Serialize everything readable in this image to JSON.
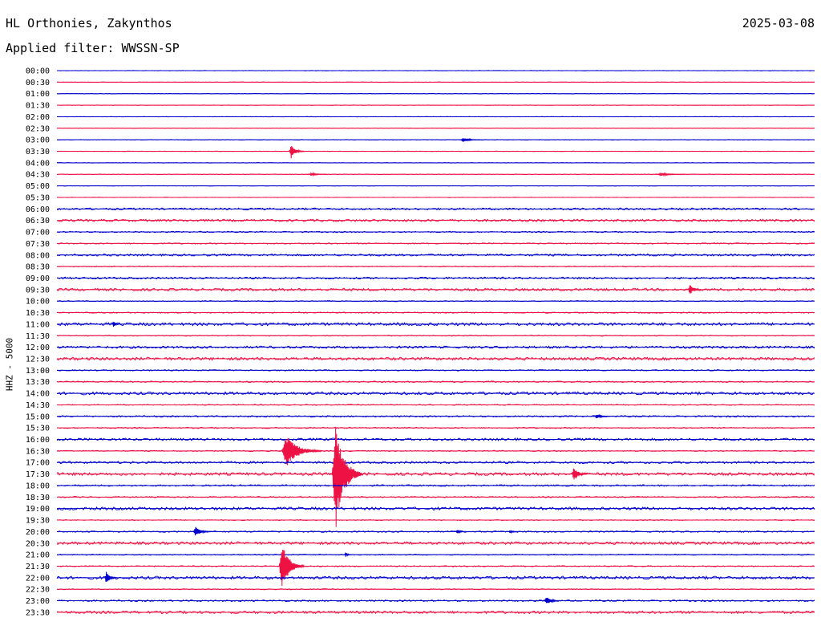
{
  "header": {
    "station": "HL Orthonies, Zakynthos",
    "date": "2025-03-08",
    "filter": "Applied filter: WWSSN-SP"
  },
  "side_label": "HHZ - 5000",
  "colors": {
    "even_row": "#0000cc",
    "odd_row": "#ee1144",
    "background": "#ffffff"
  },
  "chart_data": {
    "type": "line",
    "title": "",
    "ylabel": "HHZ - 5000",
    "xlabel": "",
    "x_unit": "minutes within 30-minute row",
    "xlim": [
      0,
      30
    ],
    "row_labels": [
      "00:00",
      "00:30",
      "01:00",
      "01:30",
      "02:00",
      "02:30",
      "03:00",
      "03:30",
      "04:00",
      "04:30",
      "05:00",
      "05:30",
      "06:00",
      "06:30",
      "07:00",
      "07:30",
      "08:00",
      "08:30",
      "09:00",
      "09:30",
      "10:00",
      "10:30",
      "11:00",
      "11:30",
      "12:00",
      "12:30",
      "13:00",
      "13:30",
      "14:00",
      "14:30",
      "15:00",
      "15:30",
      "16:00",
      "16:30",
      "17:00",
      "17:30",
      "18:00",
      "18:30",
      "19:00",
      "19:30",
      "20:00",
      "20:30",
      "21:00",
      "21:30",
      "22:00",
      "22:30",
      "23:00",
      "23:30"
    ],
    "noise_level": [
      0.3,
      0.3,
      0.3,
      0.3,
      0.3,
      0.3,
      0.4,
      0.3,
      0.3,
      0.4,
      0.3,
      0.3,
      1.2,
      1.5,
      0.8,
      0.8,
      1.3,
      0.6,
      1.2,
      1.6,
      0.6,
      0.7,
      1.8,
      0.6,
      1.5,
      1.8,
      0.8,
      0.9,
      1.8,
      0.6,
      1.0,
      0.8,
      1.5,
      0.7,
      1.4,
      1.8,
      1.0,
      0.8,
      1.8,
      0.6,
      0.9,
      1.7,
      0.7,
      0.7,
      1.8,
      0.6,
      1.0,
      1.6
    ],
    "events": [
      {
        "row": "03:00",
        "minute": 16.0,
        "amplitude": 3,
        "duration": 0.8
      },
      {
        "row": "03:30",
        "minute": 9.2,
        "amplitude": 9,
        "duration": 0.6
      },
      {
        "row": "04:30",
        "minute": 10.0,
        "amplitude": 2,
        "duration": 0.7
      },
      {
        "row": "04:30",
        "minute": 23.8,
        "amplitude": 2,
        "duration": 1.1
      },
      {
        "row": "09:30",
        "minute": 25.0,
        "amplitude": 7,
        "duration": 0.5
      },
      {
        "row": "11:00",
        "minute": 2.2,
        "amplitude": 4,
        "duration": 0.3
      },
      {
        "row": "15:00",
        "minute": 21.3,
        "amplitude": 3,
        "duration": 0.6
      },
      {
        "row": "16:30",
        "minute": 8.9,
        "amplitude": 20,
        "duration": 1.6
      },
      {
        "row": "17:30",
        "minute": 10.9,
        "amplitude": 68,
        "duration": 1.2
      },
      {
        "row": "17:30",
        "minute": 20.4,
        "amplitude": 10,
        "duration": 0.6
      },
      {
        "row": "20:00",
        "minute": 5.4,
        "amplitude": 6,
        "duration": 0.8
      },
      {
        "row": "20:00",
        "minute": 15.8,
        "amplitude": 3,
        "duration": 0.4
      },
      {
        "row": "20:00",
        "minute": 17.9,
        "amplitude": 2,
        "duration": 0.4
      },
      {
        "row": "21:00",
        "minute": 11.4,
        "amplitude": 3,
        "duration": 0.3
      },
      {
        "row": "21:30",
        "minute": 8.8,
        "amplitude": 30,
        "duration": 1.0
      },
      {
        "row": "22:00",
        "minute": 1.9,
        "amplitude": 8,
        "duration": 0.5
      },
      {
        "row": "23:00",
        "minute": 19.3,
        "amplitude": 5,
        "duration": 0.7
      }
    ],
    "grid": false,
    "legend": "none"
  }
}
